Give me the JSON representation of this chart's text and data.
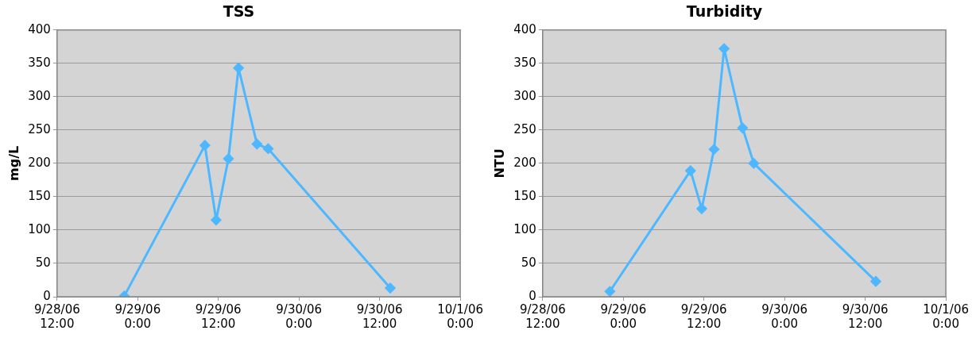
{
  "chart_data": [
    {
      "type": "line",
      "title": "TSS",
      "ylabel": "mg/L",
      "x": [
        "--09-28T22:00",
        "--09-29T10:00",
        "--09-29T11:40",
        "--09-29T13:30",
        "--09-29T15:00",
        "--09-29T17:45",
        "--09-29T19:25",
        "--09-30T13:35"
      ],
      "series": [
        {
          "color": "#4db8ff",
          "values": [
            1,
            227,
            115,
            207,
            343,
            229,
            222,
            13
          ]
        }
      ],
      "xlim": [
        "--09-28T12:00",
        "--10-01T00:00"
      ],
      "xticks": [
        {
          "value": "--09-28T12:00",
          "label": "9/28/06\n12:00"
        },
        {
          "value": "--09-29T00:00",
          "label": "9/29/06\n0:00"
        },
        {
          "value": "--09-29T12:00",
          "label": "9/29/06\n12:00"
        },
        {
          "value": "--09-30T00:00",
          "label": "9/30/06\n0:00"
        },
        {
          "value": "--09-30T12:00",
          "label": "9/30/06\n12:00"
        },
        {
          "value": "--10-01T00:00",
          "label": "10/1/06\n0:00"
        }
      ],
      "ylim": [
        0,
        400
      ],
      "yticks": [
        0,
        50,
        100,
        150,
        200,
        250,
        300,
        350,
        400
      ],
      "grid": "y",
      "legend": false,
      "marker": "diamond",
      "line_style": "solid"
    },
    {
      "type": "line",
      "title": "Turbidity",
      "ylabel": "NTU",
      "x": [
        "--09-28T22:00",
        "--09-29T10:00",
        "--09-29T11:40",
        "--09-29T13:30",
        "--09-29T15:00",
        "--09-29T17:45",
        "--09-29T19:25",
        "--09-30T13:35"
      ],
      "series": [
        {
          "color": "#4db8ff",
          "values": [
            8,
            189,
            132,
            221,
            372,
            253,
            200,
            23
          ]
        }
      ],
      "xlim": [
        "--09-28T12:00",
        "--10-01T00:00"
      ],
      "xticks": [
        {
          "value": "--09-28T12:00",
          "label": "9/28/06\n12:00"
        },
        {
          "value": "--09-29T00:00",
          "label": "9/29/06\n0:00"
        },
        {
          "value": "--09-29T12:00",
          "label": "9/29/06\n12:00"
        },
        {
          "value": "--09-30T00:00",
          "label": "9/30/06\n0:00"
        },
        {
          "value": "--09-30T12:00",
          "label": "9/30/06\n12:00"
        },
        {
          "value": "--10-01T00:00",
          "label": "10/1/06\n0:00"
        }
      ],
      "ylim": [
        0,
        400
      ],
      "yticks": [
        0,
        50,
        100,
        150,
        200,
        250,
        300,
        350,
        400
      ],
      "grid": "y",
      "legend": false,
      "marker": "diamond",
      "line_style": "solid"
    }
  ]
}
